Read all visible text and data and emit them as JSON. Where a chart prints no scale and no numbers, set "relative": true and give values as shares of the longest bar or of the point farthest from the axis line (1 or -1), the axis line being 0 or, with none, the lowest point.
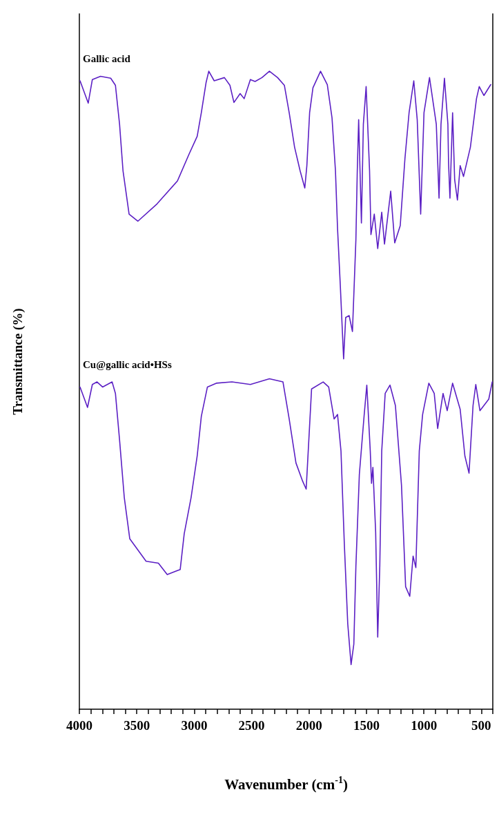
{
  "chart_data": {
    "type": "line",
    "relative": true,
    "xlabel": "Wavenumber (cm$^{-1}$)",
    "ylabel": "Transmittance (%)",
    "xlim": [
      4000,
      400
    ],
    "xticks": [
      4000,
      3500,
      3000,
      2500,
      2000,
      1500,
      1000,
      500
    ],
    "grid": false,
    "legend": false,
    "marker": "none",
    "line_style": "solid",
    "series": [
      {
        "name": "Gallic acid",
        "color": "#5b1fc4",
        "x": [
          3994,
          3923,
          3887,
          3816,
          3727,
          3686,
          3650,
          3620,
          3567,
          3490,
          3324,
          3146,
          3045,
          2974,
          2938,
          2897,
          2873,
          2826,
          2737,
          2689,
          2654,
          2600,
          2565,
          2511,
          2470,
          2410,
          2345,
          2274,
          2215,
          2173,
          2126,
          2078,
          2037,
          2019,
          1995,
          1966,
          1900,
          1841,
          1800,
          1770,
          1752,
          1728,
          1699,
          1681,
          1651,
          1622,
          1592,
          1580,
          1568,
          1544,
          1527,
          1503,
          1473,
          1461,
          1432,
          1402,
          1367,
          1343,
          1289,
          1254,
          1206,
          1165,
          1129,
          1088,
          1058,
          1028,
          999,
          951,
          892,
          868,
          851,
          821,
          791,
          785,
          773,
          750,
          732,
          708,
          684,
          655,
          595,
          542,
          518,
          477,
          418
        ],
        "values": [
          0.985,
          0.95,
          0.987,
          0.992,
          0.989,
          0.978,
          0.917,
          0.844,
          0.776,
          0.765,
          0.792,
          0.828,
          0.87,
          0.898,
          0.935,
          0.982,
          1,
          0.985,
          0.99,
          0.978,
          0.951,
          0.965,
          0.957,
          0.987,
          0.984,
          0.99,
          1,
          0.99,
          0.978,
          0.935,
          0.881,
          0.844,
          0.817,
          0.852,
          0.935,
          0.974,
          1,
          0.979,
          0.927,
          0.844,
          0.754,
          0.665,
          0.549,
          0.614,
          0.617,
          0.592,
          0.736,
          0.844,
          0.924,
          0.762,
          0.917,
          0.976,
          0.844,
          0.744,
          0.776,
          0.722,
          0.779,
          0.729,
          0.812,
          0.731,
          0.758,
          0.863,
          0.935,
          0.985,
          0.924,
          0.776,
          0.935,
          0.99,
          0.917,
          0.801,
          0.917,
          0.989,
          0.917,
          0.855,
          0.801,
          0.935,
          0.83,
          0.798,
          0.852,
          0.835,
          0.881,
          0.957,
          0.976,
          0.962,
          0.979
        ]
      },
      {
        "name": "Cu@gallic acid•HSs",
        "color": "#5b1fc4",
        "x": [
          3994,
          3929,
          3887,
          3846,
          3798,
          3715,
          3686,
          3650,
          3609,
          3561,
          3419,
          3312,
          3235,
          3122,
          3087,
          3027,
          2974,
          2938,
          2885,
          2808,
          2671,
          2511,
          2345,
          2227,
          2173,
          2114,
          2055,
          2025,
          2007,
          1978,
          1877,
          1829,
          1782,
          1752,
          1722,
          1693,
          1663,
          1634,
          1610,
          1592,
          1562,
          1521,
          1497,
          1467,
          1456,
          1444,
          1420,
          1402,
          1384,
          1367,
          1337,
          1295,
          1248,
          1195,
          1159,
          1123,
          1094,
          1070,
          1040,
          1011,
          957,
          910,
          880,
          833,
          797,
          750,
          684,
          643,
          607,
          572,
          548,
          512,
          435,
          405
        ],
        "values": [
          0.505,
          0.473,
          0.509,
          0.513,
          0.505,
          0.513,
          0.495,
          0.422,
          0.332,
          0.267,
          0.232,
          0.229,
          0.211,
          0.219,
          0.275,
          0.332,
          0.397,
          0.459,
          0.505,
          0.511,
          0.513,
          0.509,
          0.518,
          0.513,
          0.455,
          0.386,
          0.357,
          0.345,
          0.405,
          0.502,
          0.513,
          0.505,
          0.455,
          0.462,
          0.405,
          0.26,
          0.134,
          0.07,
          0.102,
          0.224,
          0.368,
          0.459,
          0.508,
          0.405,
          0.354,
          0.379,
          0.278,
          0.113,
          0.224,
          0.405,
          0.495,
          0.508,
          0.476,
          0.351,
          0.192,
          0.177,
          0.24,
          0.222,
          0.405,
          0.462,
          0.511,
          0.495,
          0.44,
          0.495,
          0.468,
          0.511,
          0.47,
          0.397,
          0.37,
          0.476,
          0.509,
          0.468,
          0.486,
          0.513
        ]
      }
    ]
  }
}
